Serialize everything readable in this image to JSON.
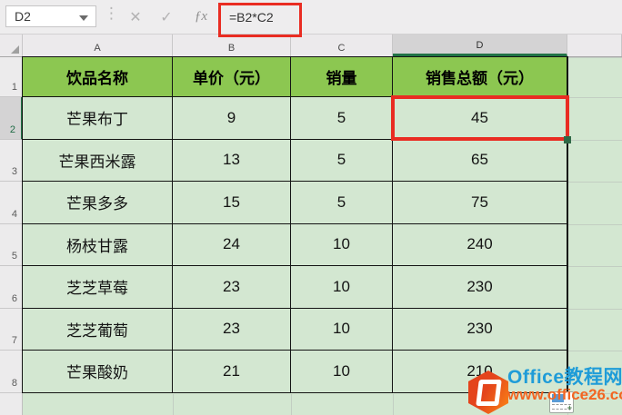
{
  "formula_bar": {
    "name_box_value": "D2",
    "formula": "=B2*C2",
    "cancel_glyph": "✕",
    "confirm_glyph": "✓",
    "fx_glyph": "ƒx",
    "dots_glyph": "⋮"
  },
  "sheet": {
    "column_headers": [
      "A",
      "B",
      "C",
      "D"
    ],
    "row_numbers": [
      "1",
      "2",
      "3",
      "4",
      "5",
      "6",
      "7",
      "8"
    ],
    "selected_cell": "D2",
    "selected_column": "D",
    "selected_row": "2"
  },
  "table": {
    "headers": [
      "饮品名称",
      "单价（元）",
      "销量",
      "销售总额（元）"
    ],
    "rows": [
      [
        "芒果布丁",
        "9",
        "5",
        "45"
      ],
      [
        "芒果西米露",
        "13",
        "5",
        "65"
      ],
      [
        "芒果多多",
        "15",
        "5",
        "75"
      ],
      [
        "杨枝甘露",
        "24",
        "10",
        "240"
      ],
      [
        "芝芝草莓",
        "23",
        "10",
        "230"
      ],
      [
        "芝芝葡萄",
        "23",
        "10",
        "230"
      ],
      [
        "芒果酸奶",
        "21",
        "10",
        "210"
      ]
    ]
  },
  "watermark": {
    "site_name": "Office教程网",
    "site_url": "www.office26.com"
  },
  "colors": {
    "header_fill": "#8cc751",
    "sheet_background": "#d3e7d1",
    "annotation_red": "#e92c22",
    "selection_green": "#217346",
    "watermark_blue": "#1f9cd8",
    "watermark_orange": "#f26522"
  }
}
